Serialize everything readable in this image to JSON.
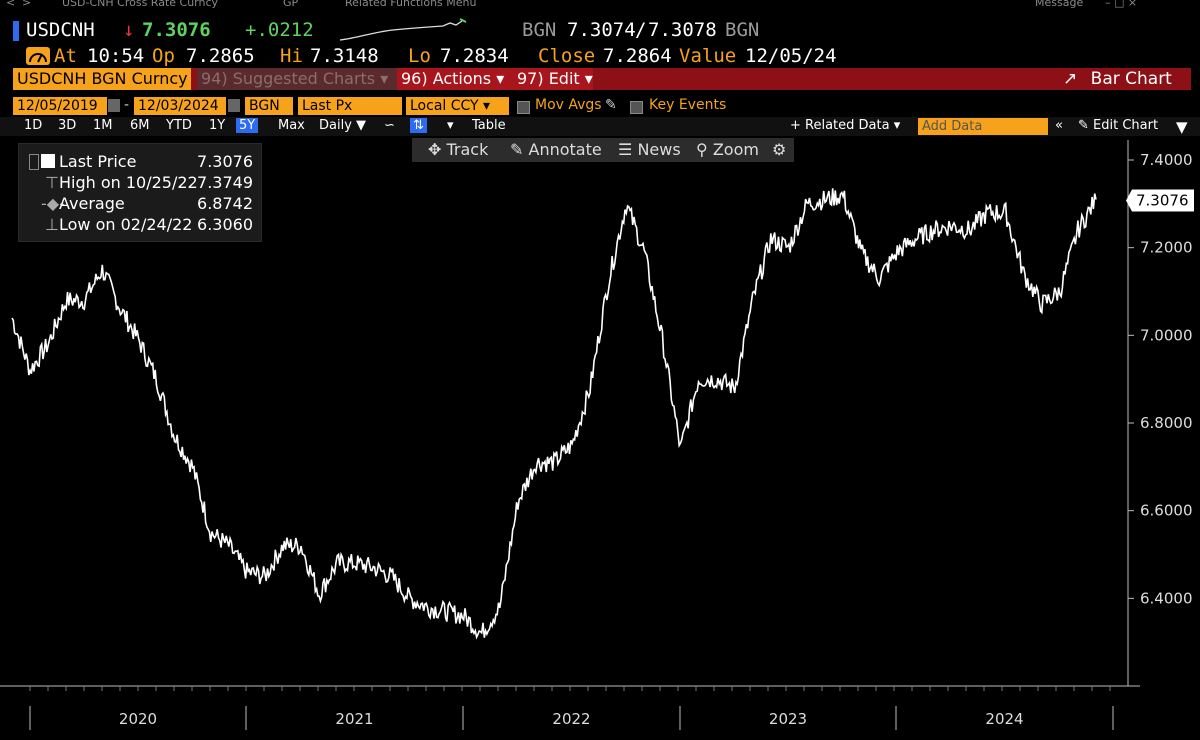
{
  "window": {
    "menu_items": [
      "USD-CNH Cross Rate Curncy",
      "GP",
      "Related Functions Menu"
    ],
    "message_label": "Message"
  },
  "quote": {
    "ticker": "USDCNH",
    "arrow": "↓",
    "last": "7.3076",
    "change": "+.0212",
    "source": "BGN",
    "bid": "7.3074",
    "ask": "7.3078",
    "source2": "BGN"
  },
  "stats": {
    "at_label": "At",
    "time": "10:54",
    "open_label": "Op",
    "open": "7.2865",
    "high_label": "Hi",
    "high": "7.3148",
    "low_label": "Lo",
    "low": "7.2834",
    "close_label": "Close",
    "close": "7.2864",
    "value_label": "Value",
    "value_date": "12/05/24"
  },
  "actionbar": {
    "security": "USDCNH BGN Curncy",
    "suggested": "94) Suggested Charts",
    "actions": "96) Actions",
    "edit": "97) Edit",
    "chart_type": "Bar Chart"
  },
  "settings": {
    "start_date": "12/05/2019",
    "end_date": "12/03/2024",
    "source": "BGN",
    "field": "Last Px",
    "currency": "Local CCY",
    "mov_avgs": "Mov Avgs",
    "key_events": "Key Events"
  },
  "ranges": {
    "items": [
      "1D",
      "3D",
      "1M",
      "6M",
      "YTD",
      "1Y",
      "5Y",
      "Max"
    ],
    "active": "5Y",
    "period": "Daily",
    "table": "Table",
    "related": "+ Related Data",
    "add_data": "Add Data",
    "edit_chart": "Edit Chart"
  },
  "tools": {
    "track": "Track",
    "annotate": "Annotate",
    "news": "News",
    "zoom": "Zoom"
  },
  "legend": {
    "last_label": "Last Price",
    "last_value": "7.3076",
    "high_label": "High on 10/25/22",
    "high_value": "7.3749",
    "avg_label": "Average",
    "avg_value": "6.8742",
    "low_label": "Low on 02/24/22",
    "low_value": "6.3060"
  },
  "colors": {
    "accent_orange": "#f7a21b",
    "action_red": "#8c1016",
    "active_blue": "#2d6cf2",
    "change_green": "#5fd35f",
    "down_red": "#e53935"
  },
  "chart_data": {
    "type": "line",
    "series": [
      {
        "name": "USDCNH",
        "x": [
          "2019-12",
          "2020-01",
          "2020-02",
          "2020-03",
          "2020-04",
          "2020-05",
          "2020-06",
          "2020-07",
          "2020-08",
          "2020-09",
          "2020-10",
          "2020-11",
          "2020-12",
          "2021-01",
          "2021-02",
          "2021-03",
          "2021-04",
          "2021-05",
          "2021-06",
          "2021-07",
          "2021-08",
          "2021-09",
          "2021-10",
          "2021-11",
          "2021-12",
          "2022-01",
          "2022-02",
          "2022-03",
          "2022-04",
          "2022-05",
          "2022-06",
          "2022-07",
          "2022-08",
          "2022-09",
          "2022-10",
          "2022-11",
          "2022-12",
          "2023-01",
          "2023-02",
          "2023-03",
          "2023-04",
          "2023-05",
          "2023-06",
          "2023-07",
          "2023-08",
          "2023-09",
          "2023-10",
          "2023-11",
          "2023-12",
          "2024-01",
          "2024-02",
          "2024-03",
          "2024-04",
          "2024-05",
          "2024-06",
          "2024-07",
          "2024-08",
          "2024-09",
          "2024-10",
          "2024-11",
          "2024-12"
        ],
        "values": [
          7.04,
          6.92,
          6.98,
          7.08,
          7.08,
          7.15,
          7.06,
          6.99,
          6.9,
          6.77,
          6.7,
          6.55,
          6.52,
          6.46,
          6.45,
          6.52,
          6.52,
          6.41,
          6.48,
          6.48,
          6.47,
          6.45,
          6.4,
          6.38,
          6.37,
          6.36,
          6.32,
          6.38,
          6.62,
          6.71,
          6.71,
          6.75,
          6.88,
          7.12,
          7.3,
          7.19,
          6.99,
          6.74,
          6.9,
          6.9,
          6.88,
          7.08,
          7.22,
          7.2,
          7.3,
          7.31,
          7.32,
          7.19,
          7.13,
          7.19,
          7.22,
          7.24,
          7.25,
          7.24,
          7.28,
          7.28,
          7.14,
          7.07,
          7.1,
          7.24,
          7.31
        ]
      }
    ],
    "y_ticks": [
      "7.4000",
      "7.2000",
      "7.0000",
      "6.8000",
      "6.6000",
      "6.4000"
    ],
    "ylim": [
      6.2,
      7.4
    ],
    "x_tick_labels": [
      "2020",
      "2021",
      "2022",
      "2023",
      "2024"
    ],
    "last_price_label": "7.3076",
    "grid": false,
    "legend_position": "top-left"
  }
}
